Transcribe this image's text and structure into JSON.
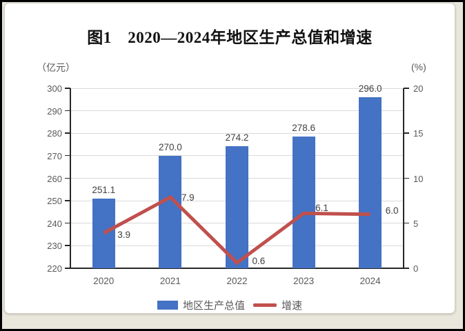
{
  "title": "图1　2020—2024年地区生产总值和增速",
  "left_axis_unit": "（亿元）",
  "right_axis_unit": "(%)",
  "legend": {
    "bar_label": "地区生产总值",
    "line_label": "增速"
  },
  "chart_data": {
    "type": "bar",
    "subtype": "bar+line combo",
    "title": "图1　2020—2024年地区生产总值和增速",
    "categories": [
      "2020",
      "2021",
      "2022",
      "2023",
      "2024"
    ],
    "series": [
      {
        "name": "地区生产总值",
        "type": "bar",
        "axis": "left",
        "unit": "亿元",
        "values": [
          251.1,
          270.0,
          274.2,
          278.6,
          296.0
        ]
      },
      {
        "name": "增速",
        "type": "line",
        "axis": "right",
        "unit": "%",
        "values": [
          3.9,
          7.9,
          0.6,
          6.1,
          6.0
        ]
      }
    ],
    "left_axis": {
      "label": "（亿元）",
      "min": 220,
      "max": 300,
      "step": 10,
      "ticks": [
        220,
        230,
        240,
        250,
        260,
        270,
        280,
        290,
        300
      ]
    },
    "right_axis": {
      "label": "(%)",
      "min": 0,
      "max": 20,
      "step": 5,
      "ticks": [
        0,
        5,
        10,
        15,
        20
      ]
    },
    "grid": true,
    "legend_position": "bottom",
    "data_labels": true,
    "colors": {
      "bar": "#4472c4",
      "line": "#c0504d",
      "grid": "#d9d9d9",
      "axis": "#262626",
      "tick_label": "#595959",
      "data_label": "#404040",
      "background": "#ffffff",
      "frame": "#e9e6db"
    }
  }
}
